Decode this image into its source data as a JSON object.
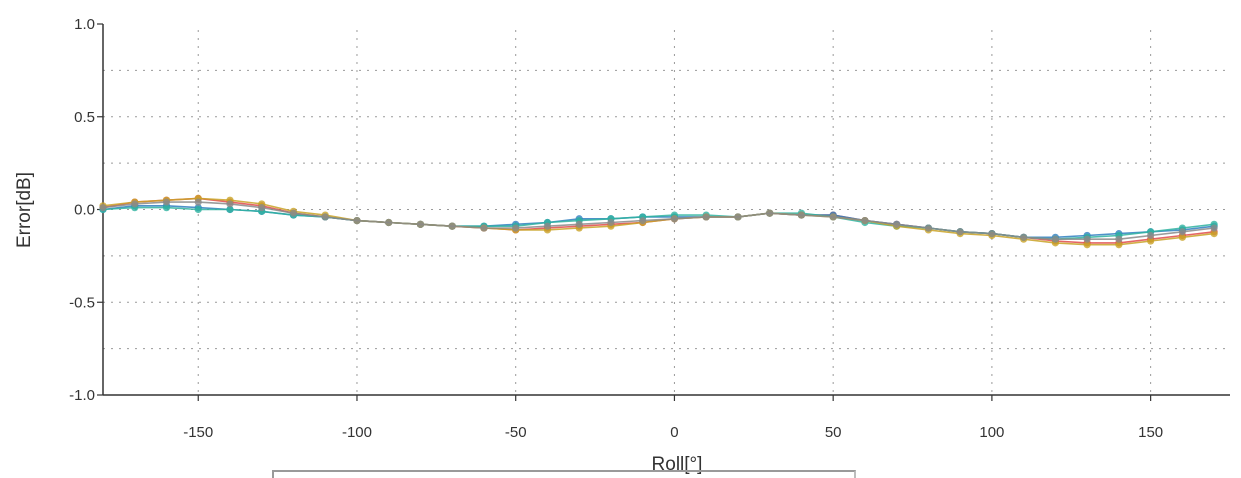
{
  "chart_data": {
    "type": "line",
    "xlabel": "Roll[°]",
    "ylabel": "Error[dB]",
    "xlim": [
      -180,
      175
    ],
    "ylim": [
      -1.0,
      1.0
    ],
    "xticks": [
      -150,
      -100,
      -50,
      0,
      50,
      100,
      150
    ],
    "yticks": [
      1.0,
      0.5,
      0.0,
      -0.5,
      -1.0
    ],
    "ytick_labels": [
      "1.0",
      "0.5",
      "0.0",
      "-0.5",
      "-1.0"
    ],
    "grid": true,
    "x": [
      -180,
      -170,
      -160,
      -150,
      -140,
      -130,
      -120,
      -110,
      -100,
      -90,
      -80,
      -70,
      -60,
      -50,
      -40,
      -30,
      -20,
      -10,
      0,
      10,
      20,
      30,
      40,
      50,
      60,
      70,
      80,
      90,
      100,
      110,
      120,
      130,
      140,
      150,
      160,
      170
    ],
    "series": [
      {
        "color": "#e04a4a",
        "values": [
          0.01,
          0.04,
          0.05,
          0.06,
          0.04,
          0.02,
          -0.02,
          -0.04,
          -0.06,
          -0.07,
          -0.08,
          -0.09,
          -0.1,
          -0.11,
          -0.1,
          -0.09,
          -0.08,
          -0.07,
          -0.05,
          -0.04,
          -0.04,
          -0.02,
          -0.03,
          -0.03,
          -0.06,
          -0.08,
          -0.1,
          -0.12,
          -0.13,
          -0.15,
          -0.17,
          -0.18,
          -0.18,
          -0.16,
          -0.14,
          -0.12
        ]
      },
      {
        "color": "#2f7fbf",
        "values": [
          0.0,
          0.02,
          0.02,
          0.01,
          0.0,
          -0.01,
          -0.03,
          -0.04,
          -0.06,
          -0.07,
          -0.08,
          -0.09,
          -0.09,
          -0.08,
          -0.07,
          -0.05,
          -0.05,
          -0.04,
          -0.04,
          -0.04,
          -0.04,
          -0.02,
          -0.03,
          -0.03,
          -0.06,
          -0.08,
          -0.1,
          -0.12,
          -0.13,
          -0.15,
          -0.15,
          -0.14,
          -0.13,
          -0.12,
          -0.11,
          -0.09
        ]
      },
      {
        "color": "#2fb3a0",
        "values": [
          0.0,
          0.01,
          0.01,
          0.0,
          0.0,
          -0.01,
          -0.03,
          -0.04,
          -0.06,
          -0.07,
          -0.08,
          -0.09,
          -0.09,
          -0.09,
          -0.07,
          -0.06,
          -0.05,
          -0.04,
          -0.03,
          -0.03,
          -0.04,
          -0.02,
          -0.02,
          -0.04,
          -0.07,
          -0.09,
          -0.1,
          -0.12,
          -0.13,
          -0.15,
          -0.16,
          -0.15,
          -0.14,
          -0.12,
          -0.1,
          -0.08
        ]
      },
      {
        "color": "#c9a227",
        "values": [
          0.02,
          0.04,
          0.05,
          0.06,
          0.05,
          0.03,
          -0.01,
          -0.03,
          -0.06,
          -0.07,
          -0.08,
          -0.09,
          -0.1,
          -0.11,
          -0.11,
          -0.1,
          -0.09,
          -0.07,
          -0.05,
          -0.04,
          -0.04,
          -0.02,
          -0.03,
          -0.04,
          -0.06,
          -0.09,
          -0.11,
          -0.13,
          -0.14,
          -0.16,
          -0.18,
          -0.19,
          -0.19,
          -0.17,
          -0.15,
          -0.13
        ]
      },
      {
        "color": "#8a8a8a",
        "values": [
          0.01,
          0.03,
          0.04,
          0.04,
          0.03,
          0.01,
          -0.02,
          -0.04,
          -0.06,
          -0.07,
          -0.08,
          -0.09,
          -0.1,
          -0.1,
          -0.09,
          -0.08,
          -0.07,
          -0.06,
          -0.05,
          -0.04,
          -0.04,
          -0.02,
          -0.03,
          -0.04,
          -0.06,
          -0.08,
          -0.1,
          -0.12,
          -0.13,
          -0.15,
          -0.16,
          -0.16,
          -0.16,
          -0.14,
          -0.12,
          -0.1
        ]
      }
    ]
  }
}
